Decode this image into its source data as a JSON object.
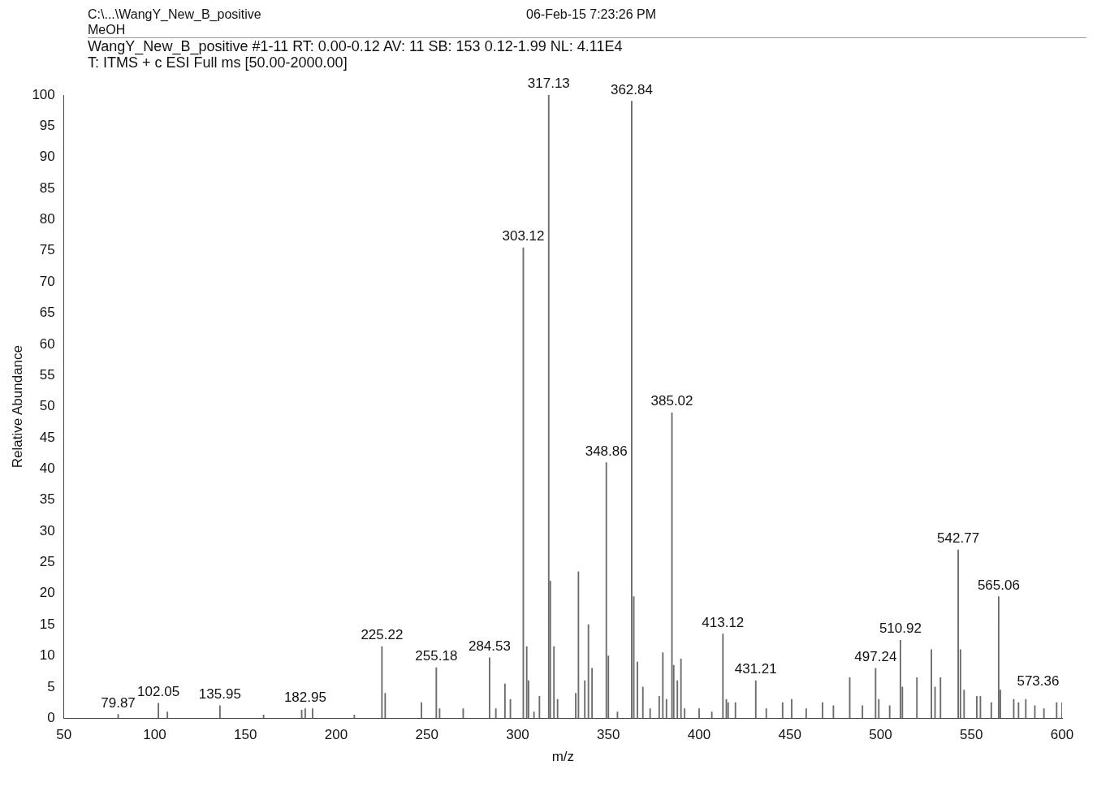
{
  "chart_data": {
    "type": "bar",
    "title": "WangY_New_B_positive #1-11  RT: 0.00-0.12  AV: 11  SB: 153  0.12-1.99  NL: 4.11E4",
    "subtitle": "T: ITMS + c ESI Full ms [50.00-2000.00]",
    "xlabel": "m/z",
    "ylabel": "Relative Abundance",
    "color": "#6b6b6b",
    "x": [
      79.87,
      102.05,
      107,
      135.95,
      160,
      181,
      182.95,
      187,
      210,
      225.22,
      227,
      247,
      255.18,
      257,
      270,
      284.53,
      288,
      293,
      296,
      303.12,
      305,
      306,
      309,
      312,
      317.13,
      318,
      320,
      322,
      332,
      333.5,
      337,
      339,
      341,
      348.86,
      350,
      355,
      362.84,
      364,
      366,
      369,
      373,
      378,
      380,
      382,
      385.02,
      386,
      388,
      390,
      392,
      400,
      407,
      413.12,
      415,
      416,
      420,
      431.21,
      437,
      446,
      451,
      459,
      468,
      474,
      483,
      490,
      497.24,
      499,
      505,
      510.92,
      512,
      520,
      528,
      530,
      533,
      542.77,
      544,
      546,
      553,
      555,
      561,
      565.06,
      566,
      573.36,
      576,
      580,
      585,
      590,
      597,
      600
    ],
    "values": [
      0.6,
      2.4,
      1,
      2,
      0.5,
      1.3,
      1.5,
      1.5,
      0.5,
      11.5,
      4,
      2.5,
      8.1,
      1.5,
      1.5,
      9.7,
      1.5,
      5.5,
      3,
      75.5,
      11.5,
      6,
      1,
      3.5,
      100,
      22,
      11.5,
      3,
      4,
      23.5,
      6,
      15,
      8,
      41,
      10,
      1,
      99,
      19.5,
      9,
      5,
      1.5,
      3.5,
      10.5,
      3,
      49,
      8.5,
      6,
      9.5,
      1.5,
      1.5,
      1,
      13.5,
      3,
      2.5,
      2.5,
      6,
      1.5,
      2.5,
      3,
      1.5,
      2.5,
      2,
      6.5,
      2,
      8,
      3,
      2,
      12.5,
      5,
      6.5,
      11,
      5,
      6.5,
      27,
      11,
      4.5,
      3.5,
      3.5,
      2.5,
      19.5,
      4.5,
      3,
      2.5,
      3,
      2,
      1.5,
      2.5,
      2.5
    ],
    "xlim": [
      50,
      600
    ],
    "xticks": [
      50,
      100,
      150,
      200,
      250,
      300,
      350,
      400,
      450,
      500,
      550,
      600
    ],
    "ylim": [
      0,
      100
    ],
    "yticks": [
      0,
      5,
      10,
      15,
      20,
      25,
      30,
      35,
      40,
      45,
      50,
      55,
      60,
      65,
      70,
      75,
      80,
      85,
      90,
      95,
      100
    ],
    "annotations": [
      "C:\\...\\WangY_New_B_positive",
      "MeOH",
      "06-Feb-15 7:23:26 PM",
      {
        "text": "79.87",
        "x": 79.87,
        "y": 0.6
      },
      {
        "text": "102.05",
        "x": 102.05,
        "y": 2.4
      },
      {
        "text": "135.95",
        "x": 135.95,
        "y": 2
      },
      {
        "text": "182.95",
        "x": 182.95,
        "y": 1.5
      },
      {
        "text": "225.22",
        "x": 225.22,
        "y": 11.5
      },
      {
        "text": "255.18",
        "x": 255.18,
        "y": 8.1
      },
      {
        "text": "284.53",
        "x": 284.53,
        "y": 9.7
      },
      {
        "text": "303.12",
        "x": 303.12,
        "y": 75.5
      },
      {
        "text": "317.13",
        "x": 317.13,
        "y": 100
      },
      {
        "text": "348.86",
        "x": 348.86,
        "y": 41
      },
      {
        "text": "362.84",
        "x": 362.84,
        "y": 99
      },
      {
        "text": "385.02",
        "x": 385.02,
        "y": 49
      },
      {
        "text": "413.12",
        "x": 413.12,
        "y": 13.5
      },
      {
        "text": "431.21",
        "x": 431.21,
        "y": 6
      },
      {
        "text": "497.24",
        "x": 497.24,
        "y": 8
      },
      {
        "text": "510.92",
        "x": 510.92,
        "y": 12.5
      },
      {
        "text": "542.77",
        "x": 542.77,
        "y": 27
      },
      {
        "text": "565.06",
        "x": 565.06,
        "y": 19.5
      },
      {
        "text": "573.36",
        "x": 573.36,
        "y": 3
      }
    ]
  }
}
